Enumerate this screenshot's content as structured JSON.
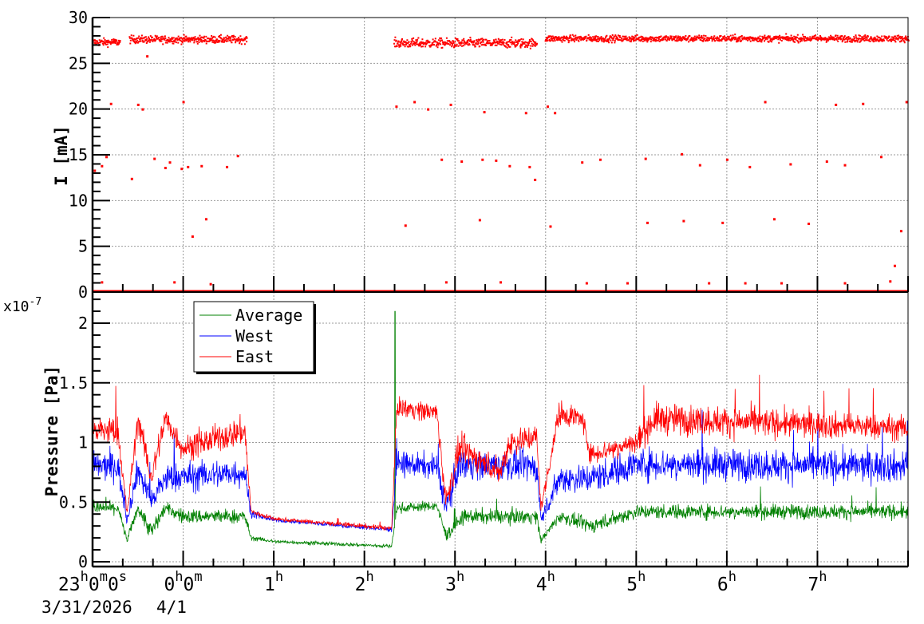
{
  "chart_data": [
    {
      "type": "scatter",
      "ylabel": "I [mA]",
      "ylim": [
        0,
        30
      ],
      "yticks": [
        "0",
        "5",
        "10",
        "15",
        "20",
        "25",
        "30"
      ],
      "xlim_hours": [
        -1,
        8
      ],
      "grid": true,
      "color": "#ff0000",
      "zero_baseline": true,
      "bands": [
        {
          "from": -1.0,
          "to": -0.7,
          "level": 27.3,
          "noise": 0.4
        },
        {
          "from": -0.6,
          "to": 0.7,
          "level": 27.6,
          "noise": 0.4
        },
        {
          "from": 2.32,
          "to": 3.9,
          "level": 27.2,
          "noise": 0.5
        },
        {
          "from": 3.99,
          "to": 8.0,
          "level": 27.7,
          "noise": 0.35
        }
      ],
      "outliers": [
        [
          -0.98,
          13.3
        ],
        [
          -0.9,
          13.8
        ],
        [
          -0.85,
          14.8
        ],
        [
          -0.8,
          20.6
        ],
        [
          -0.57,
          12.4
        ],
        [
          -0.5,
          20.5
        ],
        [
          -0.45,
          20
        ],
        [
          -0.4,
          25.8
        ],
        [
          -0.32,
          14.6
        ],
        [
          -0.2,
          13.6
        ],
        [
          -0.15,
          14.2
        ],
        [
          -0.02,
          13.5
        ],
        [
          0.0,
          20.8
        ],
        [
          0.05,
          13.7
        ],
        [
          0.1,
          6.1
        ],
        [
          0.2,
          13.8
        ],
        [
          0.25,
          8
        ],
        [
          0.48,
          13.7
        ],
        [
          0.6,
          14.9
        ],
        [
          2.35,
          20.3
        ],
        [
          2.45,
          7.3
        ],
        [
          2.55,
          20.8
        ],
        [
          2.7,
          20
        ],
        [
          2.85,
          14.5
        ],
        [
          2.95,
          20.5
        ],
        [
          3.07,
          14.3
        ],
        [
          3.27,
          7.9
        ],
        [
          3.3,
          14.5
        ],
        [
          3.32,
          19.7
        ],
        [
          3.45,
          14.4
        ],
        [
          3.6,
          13.8
        ],
        [
          3.78,
          19.6
        ],
        [
          3.82,
          13.7
        ],
        [
          3.88,
          12.3
        ],
        [
          4.02,
          20.3
        ],
        [
          4.05,
          7.2
        ],
        [
          4.1,
          19.6
        ],
        [
          4.4,
          14.2
        ],
        [
          4.6,
          14.5
        ],
        [
          5.1,
          14.6
        ],
        [
          5.12,
          7.6
        ],
        [
          5.5,
          15.1
        ],
        [
          5.52,
          7.8
        ],
        [
          5.7,
          13.9
        ],
        [
          5.95,
          7.6
        ],
        [
          6.0,
          14.5
        ],
        [
          6.25,
          13.7
        ],
        [
          6.42,
          20.8
        ],
        [
          6.52,
          8
        ],
        [
          6.7,
          14
        ],
        [
          6.9,
          7.5
        ],
        [
          7.1,
          14.3
        ],
        [
          7.2,
          20.5
        ],
        [
          7.3,
          13.9
        ],
        [
          7.5,
          20.6
        ],
        [
          7.7,
          14.8
        ],
        [
          7.92,
          6.7
        ],
        [
          7.85,
          2.9
        ],
        [
          7.98,
          20.8
        ],
        [
          -0.9,
          1.1
        ],
        [
          -0.1,
          1.1
        ],
        [
          0.3,
          0.9
        ],
        [
          2.9,
          1.1
        ],
        [
          3.5,
          1.1
        ],
        [
          4.45,
          1.0
        ],
        [
          4.9,
          1.0
        ],
        [
          5.8,
          1.0
        ],
        [
          6.2,
          1.0
        ],
        [
          6.6,
          1.0
        ],
        [
          7.3,
          1.0
        ],
        [
          7.8,
          1.2
        ]
      ]
    },
    {
      "type": "line",
      "ylabel": "Pressure [Pa]",
      "ylim": [
        0,
        2.26
      ],
      "yticks": [
        "0",
        "0.5",
        "1",
        "1.5",
        "2"
      ],
      "y_multiplier": "x10",
      "y_multiplier_exp": "-7",
      "xlim_hours": [
        -1,
        8
      ],
      "xtick_labels": [
        {
          "h": -1,
          "base": "23",
          "parts": [
            [
              "h",
              "0"
            ],
            [
              "m",
              "0"
            ],
            [
              "s",
              ""
            ]
          ]
        },
        {
          "h": 0,
          "base": "0",
          "parts": [
            [
              "h",
              "0"
            ],
            [
              "m",
              ""
            ]
          ]
        },
        {
          "h": 1,
          "base": "1",
          "parts": [
            [
              "h",
              ""
            ]
          ]
        },
        {
          "h": 2,
          "base": "2",
          "parts": [
            [
              "h",
              ""
            ]
          ]
        },
        {
          "h": 3,
          "base": "3",
          "parts": [
            [
              "h",
              ""
            ]
          ]
        },
        {
          "h": 4,
          "base": "4",
          "parts": [
            [
              "h",
              ""
            ]
          ]
        },
        {
          "h": 5,
          "base": "5",
          "parts": [
            [
              "h",
              ""
            ]
          ]
        },
        {
          "h": 6,
          "base": "6",
          "parts": [
            [
              "h",
              ""
            ]
          ]
        },
        {
          "h": 7,
          "base": "7",
          "parts": [
            [
              "h",
              ""
            ]
          ]
        }
      ],
      "date_labels": [
        "3/31/2026",
        "4/1"
      ],
      "grid": true,
      "legend_position": "top-left",
      "series": [
        {
          "name": "Average",
          "color": "#008000",
          "knots": [
            [
              -1,
              0.45,
              0.05
            ],
            [
              -0.72,
              0.45,
              0.05
            ],
            [
              -0.62,
              0.18,
              0.03
            ],
            [
              -0.5,
              0.45,
              0.05
            ],
            [
              -0.35,
              0.25,
              0.08
            ],
            [
              -0.2,
              0.45,
              0.05
            ],
            [
              0,
              0.38,
              0.06
            ],
            [
              0.68,
              0.38,
              0.06
            ],
            [
              0.75,
              0.2,
              0.02
            ],
            [
              1.0,
              0.17,
              0.015
            ],
            [
              2.3,
              0.13,
              0.015
            ],
            [
              2.36,
              0.45,
              0.04
            ],
            [
              2.8,
              0.47,
              0.04
            ],
            [
              2.9,
              0.22,
              0.05
            ],
            [
              3.1,
              0.38,
              0.06
            ],
            [
              3.9,
              0.38,
              0.06
            ],
            [
              3.95,
              0.18,
              0.03
            ],
            [
              4.15,
              0.38,
              0.05
            ],
            [
              4.5,
              0.3,
              0.06
            ],
            [
              5.0,
              0.42,
              0.06
            ],
            [
              8,
              0.42,
              0.06
            ]
          ]
        },
        {
          "name": "West",
          "color": "#0000ff",
          "knots": [
            [
              -1,
              0.8,
              0.12
            ],
            [
              -0.72,
              0.8,
              0.12
            ],
            [
              -0.62,
              0.35,
              0.04
            ],
            [
              -0.5,
              0.78,
              0.12
            ],
            [
              -0.35,
              0.5,
              0.1
            ],
            [
              -0.2,
              0.7,
              0.12
            ],
            [
              0.68,
              0.75,
              0.12
            ],
            [
              0.75,
              0.4,
              0.03
            ],
            [
              1.0,
              0.35,
              0.015
            ],
            [
              2.3,
              0.27,
              0.02
            ],
            [
              2.36,
              0.82,
              0.1
            ],
            [
              2.8,
              0.8,
              0.1
            ],
            [
              2.9,
              0.45,
              0.1
            ],
            [
              3.05,
              0.82,
              0.12
            ],
            [
              3.9,
              0.8,
              0.12
            ],
            [
              3.95,
              0.35,
              0.05
            ],
            [
              4.15,
              0.7,
              0.12
            ],
            [
              4.5,
              0.7,
              0.12
            ],
            [
              5.0,
              0.82,
              0.13
            ],
            [
              8,
              0.8,
              0.13
            ]
          ]
        },
        {
          "name": "East",
          "color": "#ff0000",
          "knots": [
            [
              -1,
              1.1,
              0.12
            ],
            [
              -0.72,
              1.1,
              0.12
            ],
            [
              -0.62,
              0.4,
              0.05
            ],
            [
              -0.5,
              1.2,
              0.1
            ],
            [
              -0.35,
              0.7,
              0.12
            ],
            [
              -0.2,
              1.2,
              0.12
            ],
            [
              0,
              0.95,
              0.1
            ],
            [
              0.68,
              1.1,
              0.12
            ],
            [
              0.75,
              0.42,
              0.03
            ],
            [
              1.0,
              0.36,
              0.015
            ],
            [
              2.3,
              0.28,
              0.02
            ],
            [
              2.36,
              1.3,
              0.08
            ],
            [
              2.8,
              1.25,
              0.08
            ],
            [
              2.9,
              0.5,
              0.1
            ],
            [
              3.05,
              0.95,
              0.12
            ],
            [
              3.5,
              0.75,
              0.1
            ],
            [
              3.6,
              1.0,
              0.12
            ],
            [
              3.9,
              1.05,
              0.1
            ],
            [
              3.95,
              0.45,
              0.05
            ],
            [
              4.15,
              1.25,
              0.1
            ],
            [
              4.4,
              1.2,
              0.1
            ],
            [
              4.5,
              0.9,
              0.08
            ],
            [
              5.0,
              1.0,
              0.1
            ],
            [
              5.2,
              1.2,
              0.13
            ],
            [
              8,
              1.12,
              0.1
            ]
          ]
        }
      ]
    }
  ]
}
